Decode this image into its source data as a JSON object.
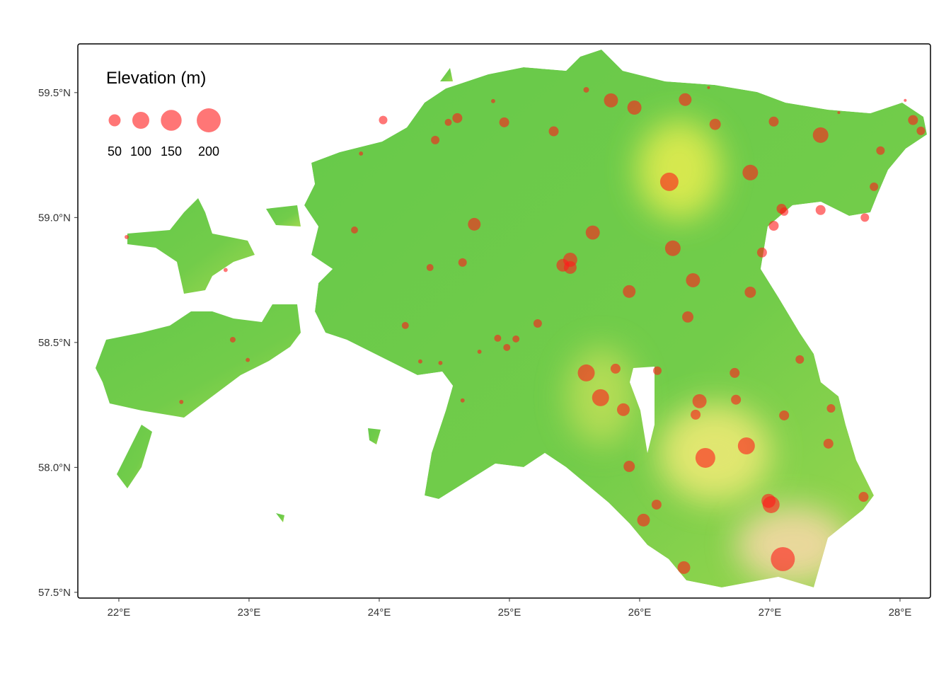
{
  "chart_data": {
    "type": "scatter",
    "xlim": [
      21.685,
      28.234
    ],
    "ylim": [
      57.477,
      59.695
    ],
    "xticks": [
      {
        "value": 22,
        "label": "22°E"
      },
      {
        "value": 23,
        "label": "23°E"
      },
      {
        "value": 24,
        "label": "24°E"
      },
      {
        "value": 25,
        "label": "25°E"
      },
      {
        "value": 26,
        "label": "26°E"
      },
      {
        "value": 27,
        "label": "27°E"
      },
      {
        "value": 28,
        "label": "28°E"
      }
    ],
    "yticks": [
      {
        "value": 57.5,
        "label": "57.5°N"
      },
      {
        "value": 58.0,
        "label": "58.0°N"
      },
      {
        "value": 58.5,
        "label": "58.5°N"
      },
      {
        "value": 59.0,
        "label": "59.0°N"
      },
      {
        "value": 59.5,
        "label": "59.5°N"
      }
    ],
    "color": "#ff1a1a",
    "size_legend": {
      "title": "Elevation (m)",
      "values": [
        50,
        100,
        150,
        200
      ]
    },
    "x": [
      27.1,
      26.505,
      26.228,
      26.255,
      26.82,
      27.01,
      26.99,
      25.7,
      25.59,
      27.39,
      26.85,
      25.96,
      25.78,
      26.35,
      25.64,
      26.46,
      25.467,
      25.41,
      25.467,
      26.41,
      25.92,
      24.73,
      26.58,
      26.03,
      26.34,
      25.875,
      25.92,
      26.37,
      26.85,
      27.72,
      27.45,
      26.73,
      26.74,
      26.43,
      27.11,
      26.13,
      25.815,
      26.136,
      25.34,
      24.96,
      24.6,
      24.53,
      24.43,
      24.03,
      27.03,
      27.85,
      28.1,
      28.16,
      27.39,
      27.09,
      27.11,
      27.03,
      26.94,
      27.73,
      27.8,
      27.47,
      27.23,
      25.217,
      24.64,
      24.39,
      24.2,
      24.91,
      24.98,
      25.05,
      23.81,
      25.59,
      22.875,
      22.99,
      24.315,
      24.47,
      24.64,
      24.77,
      24.875,
      23.86,
      22.48,
      22.82,
      22.06,
      27.53,
      26.53,
      28.04
    ],
    "y": [
      57.633,
      58.038,
      59.143,
      58.877,
      58.086,
      57.851,
      57.866,
      58.279,
      58.378,
      59.33,
      59.18,
      59.44,
      59.469,
      59.472,
      58.94,
      58.265,
      58.831,
      58.809,
      58.8,
      58.749,
      58.704,
      58.973,
      59.373,
      57.789,
      57.599,
      58.231,
      58.004,
      58.602,
      58.701,
      57.882,
      58.095,
      58.378,
      58.271,
      58.211,
      58.208,
      57.851,
      58.395,
      58.387,
      59.345,
      59.381,
      59.398,
      59.381,
      59.31,
      59.39,
      59.384,
      59.268,
      59.39,
      59.347,
      59.03,
      59.035,
      59.024,
      58.967,
      58.86,
      59.0,
      59.123,
      58.236,
      58.432,
      58.576,
      58.82,
      58.8,
      58.568,
      58.517,
      58.48,
      58.514,
      58.95,
      59.511,
      58.511,
      58.43,
      58.424,
      58.418,
      58.268,
      58.463,
      59.466,
      59.256,
      58.262,
      58.79,
      58.922,
      59.42,
      59.52,
      59.469
    ],
    "size": [
      200,
      136,
      117,
      84,
      100,
      100,
      69,
      100,
      100,
      84,
      84,
      69,
      69,
      56,
      69,
      69,
      69,
      56,
      56,
      69,
      56,
      56,
      44,
      56,
      56,
      56,
      44,
      44,
      44,
      34,
      34,
      34,
      34,
      34,
      34,
      34,
      34,
      25,
      34,
      34,
      34,
      17,
      25,
      25,
      34,
      25,
      34,
      25,
      34,
      34,
      25,
      34,
      34,
      25,
      25,
      25,
      25,
      25,
      25,
      17,
      17,
      17,
      17,
      17,
      17,
      11,
      11,
      6,
      6,
      6,
      6,
      6,
      6,
      6,
      6,
      6,
      6,
      3,
      3,
      3
    ]
  }
}
